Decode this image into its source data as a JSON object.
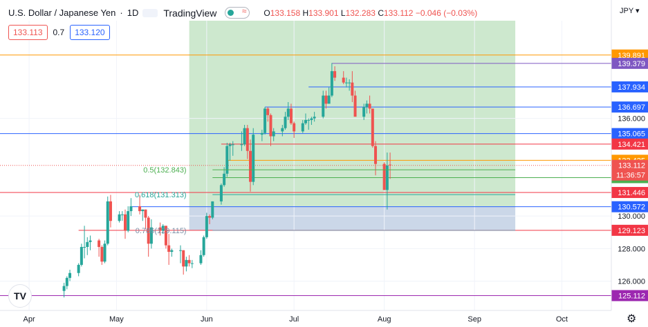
{
  "header": {
    "symbol": "U.S. Dollar / Japanese Yen",
    "interval": "1D",
    "brand": "TradingView",
    "open_label": "O",
    "open": "133.158",
    "high_label": "H",
    "high": "133.901",
    "low_label": "L",
    "low": "132.283",
    "close_label": "C",
    "close": "133.112",
    "change": "−0.046 (−0.03%)"
  },
  "trade": {
    "sell": "133.113",
    "spread": "0.7",
    "buy": "133.120"
  },
  "currency": "JPY",
  "logo_text": "TV",
  "icons": {
    "settings": "gear-icon"
  },
  "colors": {
    "up": "#26a69a",
    "down": "#ef5350",
    "hline_blue": "#2962ff",
    "hline_red": "#f23645",
    "hline_orange": "#ff9800",
    "profit_zone": "#c8e6c9",
    "loss_zone": "#c5d3e6"
  },
  "chart_data": {
    "type": "candlestick",
    "ylim": [
      124.2,
      142.0
    ],
    "y_ticks": [
      126.0,
      128.0,
      130.0,
      136.0
    ],
    "x_ticks": [
      {
        "label": "Apr",
        "date": "2022-04-01"
      },
      {
        "label": "May",
        "date": "2022-05-01"
      },
      {
        "label": "Jun",
        "date": "2022-06-01"
      },
      {
        "label": "Jul",
        "date": "2022-07-01"
      },
      {
        "label": "Aug",
        "date": "2022-08-01"
      },
      {
        "label": "Sep",
        "date": "2022-09-01"
      },
      {
        "label": "Oct",
        "date": "2022-10-01"
      }
    ],
    "x_range": [
      "2022-03-22",
      "2022-10-18"
    ],
    "series": [
      {
        "d": "2022-04-13",
        "o": 125.4,
        "h": 125.9,
        "l": 125.0,
        "c": 125.7
      },
      {
        "d": "2022-04-14",
        "o": 125.7,
        "h": 126.3,
        "l": 125.5,
        "c": 126.2
      },
      {
        "d": "2022-04-15",
        "o": 126.2,
        "h": 126.7,
        "l": 126.0,
        "c": 126.5
      },
      {
        "d": "2022-04-18",
        "o": 126.5,
        "h": 127.1,
        "l": 126.3,
        "c": 127.0
      },
      {
        "d": "2022-04-19",
        "o": 127.0,
        "h": 128.3,
        "l": 126.9,
        "c": 128.1
      },
      {
        "d": "2022-04-20",
        "o": 128.1,
        "h": 129.4,
        "l": 127.4,
        "c": 128.1
      },
      {
        "d": "2022-04-21",
        "o": 128.1,
        "h": 128.7,
        "l": 127.6,
        "c": 128.4
      },
      {
        "d": "2022-04-22",
        "o": 128.4,
        "h": 128.8,
        "l": 127.9,
        "c": 128.5
      },
      {
        "d": "2022-04-25",
        "o": 128.5,
        "h": 128.6,
        "l": 127.5,
        "c": 128.1
      },
      {
        "d": "2022-04-26",
        "o": 128.1,
        "h": 128.2,
        "l": 127.0,
        "c": 127.2
      },
      {
        "d": "2022-04-27",
        "o": 127.2,
        "h": 128.5,
        "l": 127.1,
        "c": 128.3
      },
      {
        "d": "2022-04-28",
        "o": 128.3,
        "h": 131.2,
        "l": 128.2,
        "c": 130.9
      },
      {
        "d": "2022-04-29",
        "o": 130.9,
        "h": 131.3,
        "l": 129.3,
        "c": 129.7
      },
      {
        "d": "2022-05-02",
        "o": 129.7,
        "h": 130.3,
        "l": 129.6,
        "c": 130.1
      },
      {
        "d": "2022-05-03",
        "o": 130.1,
        "h": 130.3,
        "l": 129.7,
        "c": 130.1
      },
      {
        "d": "2022-05-04",
        "o": 130.1,
        "h": 130.4,
        "l": 128.6,
        "c": 129.1
      },
      {
        "d": "2022-05-05",
        "o": 129.1,
        "h": 130.6,
        "l": 129.0,
        "c": 130.3
      },
      {
        "d": "2022-05-06",
        "o": 130.3,
        "h": 131.1,
        "l": 130.0,
        "c": 130.6
      },
      {
        "d": "2022-05-09",
        "o": 130.6,
        "h": 131.3,
        "l": 130.1,
        "c": 130.3
      },
      {
        "d": "2022-05-10",
        "o": 130.3,
        "h": 130.4,
        "l": 129.7,
        "c": 130.4
      },
      {
        "d": "2022-05-11",
        "o": 130.4,
        "h": 130.4,
        "l": 129.2,
        "c": 129.9
      },
      {
        "d": "2022-05-12",
        "o": 129.9,
        "h": 130.0,
        "l": 127.5,
        "c": 128.3
      },
      {
        "d": "2022-05-13",
        "o": 128.3,
        "h": 129.8,
        "l": 128.0,
        "c": 129.3
      },
      {
        "d": "2022-05-16",
        "o": 129.3,
        "h": 129.6,
        "l": 128.8,
        "c": 129.1
      },
      {
        "d": "2022-05-17",
        "o": 129.1,
        "h": 129.5,
        "l": 128.9,
        "c": 129.4
      },
      {
        "d": "2022-05-18",
        "o": 129.4,
        "h": 129.4,
        "l": 128.0,
        "c": 128.2
      },
      {
        "d": "2022-05-19",
        "o": 128.2,
        "h": 128.9,
        "l": 127.0,
        "c": 127.8
      },
      {
        "d": "2022-05-20",
        "o": 127.8,
        "h": 128.0,
        "l": 127.5,
        "c": 127.9
      },
      {
        "d": "2022-05-23",
        "o": 127.9,
        "h": 128.2,
        "l": 127.1,
        "c": 127.9
      },
      {
        "d": "2022-05-24",
        "o": 127.9,
        "h": 127.9,
        "l": 126.4,
        "c": 126.9
      },
      {
        "d": "2022-05-25",
        "o": 126.9,
        "h": 127.5,
        "l": 126.6,
        "c": 127.3
      },
      {
        "d": "2022-05-26",
        "o": 127.3,
        "h": 127.6,
        "l": 126.9,
        "c": 127.1
      },
      {
        "d": "2022-05-27",
        "o": 127.1,
        "h": 127.3,
        "l": 126.8,
        "c": 127.1
      },
      {
        "d": "2022-05-30",
        "o": 127.1,
        "h": 127.9,
        "l": 127.0,
        "c": 127.6
      },
      {
        "d": "2022-05-31",
        "o": 127.6,
        "h": 128.8,
        "l": 127.5,
        "c": 128.7
      },
      {
        "d": "2022-06-01",
        "o": 128.7,
        "h": 130.2,
        "l": 128.6,
        "c": 130.0
      },
      {
        "d": "2022-06-02",
        "o": 130.0,
        "h": 130.1,
        "l": 129.5,
        "c": 129.9
      },
      {
        "d": "2022-06-03",
        "o": 129.9,
        "h": 130.9,
        "l": 129.8,
        "c": 130.9
      },
      {
        "d": "2022-06-06",
        "o": 130.9,
        "h": 132.0,
        "l": 130.7,
        "c": 131.9
      },
      {
        "d": "2022-06-07",
        "o": 131.9,
        "h": 133.0,
        "l": 131.8,
        "c": 132.6
      },
      {
        "d": "2022-06-08",
        "o": 132.6,
        "h": 134.5,
        "l": 132.4,
        "c": 134.3
      },
      {
        "d": "2022-06-09",
        "o": 134.3,
        "h": 134.5,
        "l": 133.4,
        "c": 134.4
      },
      {
        "d": "2022-06-10",
        "o": 134.4,
        "h": 134.6,
        "l": 133.7,
        "c": 134.4
      },
      {
        "d": "2022-06-13",
        "o": 134.4,
        "h": 135.2,
        "l": 134.0,
        "c": 134.4
      },
      {
        "d": "2022-06-14",
        "o": 134.4,
        "h": 135.6,
        "l": 134.3,
        "c": 135.4
      },
      {
        "d": "2022-06-15",
        "o": 135.4,
        "h": 135.6,
        "l": 133.5,
        "c": 134.0
      },
      {
        "d": "2022-06-16",
        "o": 134.0,
        "h": 134.7,
        "l": 131.5,
        "c": 132.1
      },
      {
        "d": "2022-06-17",
        "o": 132.1,
        "h": 135.4,
        "l": 131.9,
        "c": 135.0
      },
      {
        "d": "2022-06-20",
        "o": 135.0,
        "h": 135.3,
        "l": 134.6,
        "c": 135.1
      },
      {
        "d": "2022-06-21",
        "o": 135.1,
        "h": 136.7,
        "l": 135.0,
        "c": 136.6
      },
      {
        "d": "2022-06-22",
        "o": 136.6,
        "h": 136.7,
        "l": 135.8,
        "c": 136.2
      },
      {
        "d": "2022-06-23",
        "o": 136.2,
        "h": 136.3,
        "l": 134.3,
        "c": 134.9
      },
      {
        "d": "2022-06-24",
        "o": 134.9,
        "h": 135.4,
        "l": 134.6,
        "c": 135.2
      },
      {
        "d": "2022-06-27",
        "o": 135.2,
        "h": 135.6,
        "l": 134.9,
        "c": 135.4
      },
      {
        "d": "2022-06-28",
        "o": 135.4,
        "h": 136.4,
        "l": 135.3,
        "c": 136.1
      },
      {
        "d": "2022-06-29",
        "o": 136.1,
        "h": 137.0,
        "l": 135.9,
        "c": 136.6
      },
      {
        "d": "2022-06-30",
        "o": 136.6,
        "h": 136.9,
        "l": 135.6,
        "c": 135.7
      },
      {
        "d": "2022-07-01",
        "o": 135.7,
        "h": 135.8,
        "l": 134.8,
        "c": 135.2
      },
      {
        "d": "2022-07-04",
        "o": 135.2,
        "h": 135.9,
        "l": 135.1,
        "c": 135.7
      },
      {
        "d": "2022-07-05",
        "o": 135.7,
        "h": 136.3,
        "l": 135.6,
        "c": 135.9
      },
      {
        "d": "2022-07-06",
        "o": 135.9,
        "h": 136.0,
        "l": 135.3,
        "c": 135.9
      },
      {
        "d": "2022-07-07",
        "o": 135.9,
        "h": 136.1,
        "l": 135.6,
        "c": 136.0
      },
      {
        "d": "2022-07-08",
        "o": 136.0,
        "h": 136.4,
        "l": 135.8,
        "c": 136.1
      },
      {
        "d": "2022-07-11",
        "o": 136.1,
        "h": 137.7,
        "l": 136.0,
        "c": 137.4
      },
      {
        "d": "2022-07-12",
        "o": 137.4,
        "h": 137.7,
        "l": 136.6,
        "c": 136.9
      },
      {
        "d": "2022-07-13",
        "o": 136.9,
        "h": 137.9,
        "l": 136.9,
        "c": 137.4
      },
      {
        "d": "2022-07-14",
        "o": 137.4,
        "h": 139.4,
        "l": 137.3,
        "c": 138.9
      },
      {
        "d": "2022-07-15",
        "o": 138.9,
        "h": 139.2,
        "l": 138.3,
        "c": 138.5
      },
      {
        "d": "2022-07-18",
        "o": 138.5,
        "h": 138.9,
        "l": 138.1,
        "c": 138.2
      },
      {
        "d": "2022-07-19",
        "o": 138.2,
        "h": 138.5,
        "l": 137.9,
        "c": 138.2
      },
      {
        "d": "2022-07-20",
        "o": 138.2,
        "h": 138.4,
        "l": 137.7,
        "c": 138.2
      },
      {
        "d": "2022-07-21",
        "o": 138.2,
        "h": 138.9,
        "l": 137.0,
        "c": 137.4
      },
      {
        "d": "2022-07-22",
        "o": 137.4,
        "h": 137.7,
        "l": 136.2,
        "c": 136.1
      },
      {
        "d": "2022-07-25",
        "o": 136.1,
        "h": 136.9,
        "l": 135.9,
        "c": 136.7
      },
      {
        "d": "2022-07-26",
        "o": 136.7,
        "h": 137.1,
        "l": 136.3,
        "c": 136.9
      },
      {
        "d": "2022-07-27",
        "o": 136.9,
        "h": 137.4,
        "l": 136.3,
        "c": 136.6
      },
      {
        "d": "2022-07-28",
        "o": 136.6,
        "h": 136.6,
        "l": 134.2,
        "c": 134.3
      },
      {
        "d": "2022-07-29",
        "o": 134.3,
        "h": 134.6,
        "l": 132.5,
        "c": 133.2
      },
      {
        "d": "2022-08-01",
        "o": 133.2,
        "h": 133.3,
        "l": 131.6,
        "c": 131.6
      },
      {
        "d": "2022-08-02",
        "o": 131.6,
        "h": 133.9,
        "l": 130.4,
        "c": 133.1
      },
      {
        "d": "2022-08-03",
        "o": 133.158,
        "h": 133.901,
        "l": 132.283,
        "c": 133.112
      }
    ],
    "levels": [
      {
        "value": 139.891,
        "label": "139.891",
        "color": "#ff9800",
        "x_start_date": "2022-03-22"
      },
      {
        "value": 139.379,
        "label": "139.379",
        "color": "#7e57c2",
        "x_start_date": "2022-07-14"
      },
      {
        "value": 137.934,
        "label": "137.934",
        "color": "#2962ff",
        "x_start_date": "2022-07-06"
      },
      {
        "value": 136.697,
        "label": "136.697",
        "color": "#2962ff",
        "x_start_date": "2022-06-21"
      },
      {
        "value": 135.065,
        "label": "135.065",
        "color": "#2962ff",
        "x_start_date": "2022-03-22"
      },
      {
        "value": 134.421,
        "label": "134.421",
        "color": "#f23645",
        "x_start_date": "2022-06-06"
      },
      {
        "value": 133.425,
        "label": "133.425",
        "color": "#ff9800",
        "x_start_date": "2022-06-08"
      },
      {
        "value": 132.359,
        "label": "132.359",
        "color": "#4caf50",
        "x_start_date": "2022-06-03"
      },
      {
        "value": 131.446,
        "label": "131.446",
        "color": "#f23645",
        "x_start_date": "2022-03-22"
      },
      {
        "value": 130.572,
        "label": "130.572",
        "color": "#2962ff",
        "x_start_date": "2022-05-06"
      },
      {
        "value": 129.123,
        "label": "129.123",
        "color": "#f23645",
        "x_start_date": "2022-04-18"
      },
      {
        "value": 125.112,
        "label": "125.112",
        "color": "#9c27b0",
        "x_start_date": "2022-03-22"
      }
    ],
    "last_price": {
      "value": 133.112,
      "label": "133.112",
      "countdown": "11:36:57"
    },
    "fib_labels": [
      {
        "text": "0.5(132.843)",
        "value": 132.843,
        "color": "#4caf50"
      },
      {
        "text": "0.618(131.313)",
        "value": 131.313,
        "color": "#26a69a"
      },
      {
        "text": "0.786(129.115)",
        "value": 129.115,
        "color": "#7b8fa6"
      }
    ],
    "position_zone": {
      "start": "2022-05-26",
      "end": "2022-09-15",
      "top": 142.0,
      "entry": 130.572,
      "bottom": 129.123
    }
  }
}
